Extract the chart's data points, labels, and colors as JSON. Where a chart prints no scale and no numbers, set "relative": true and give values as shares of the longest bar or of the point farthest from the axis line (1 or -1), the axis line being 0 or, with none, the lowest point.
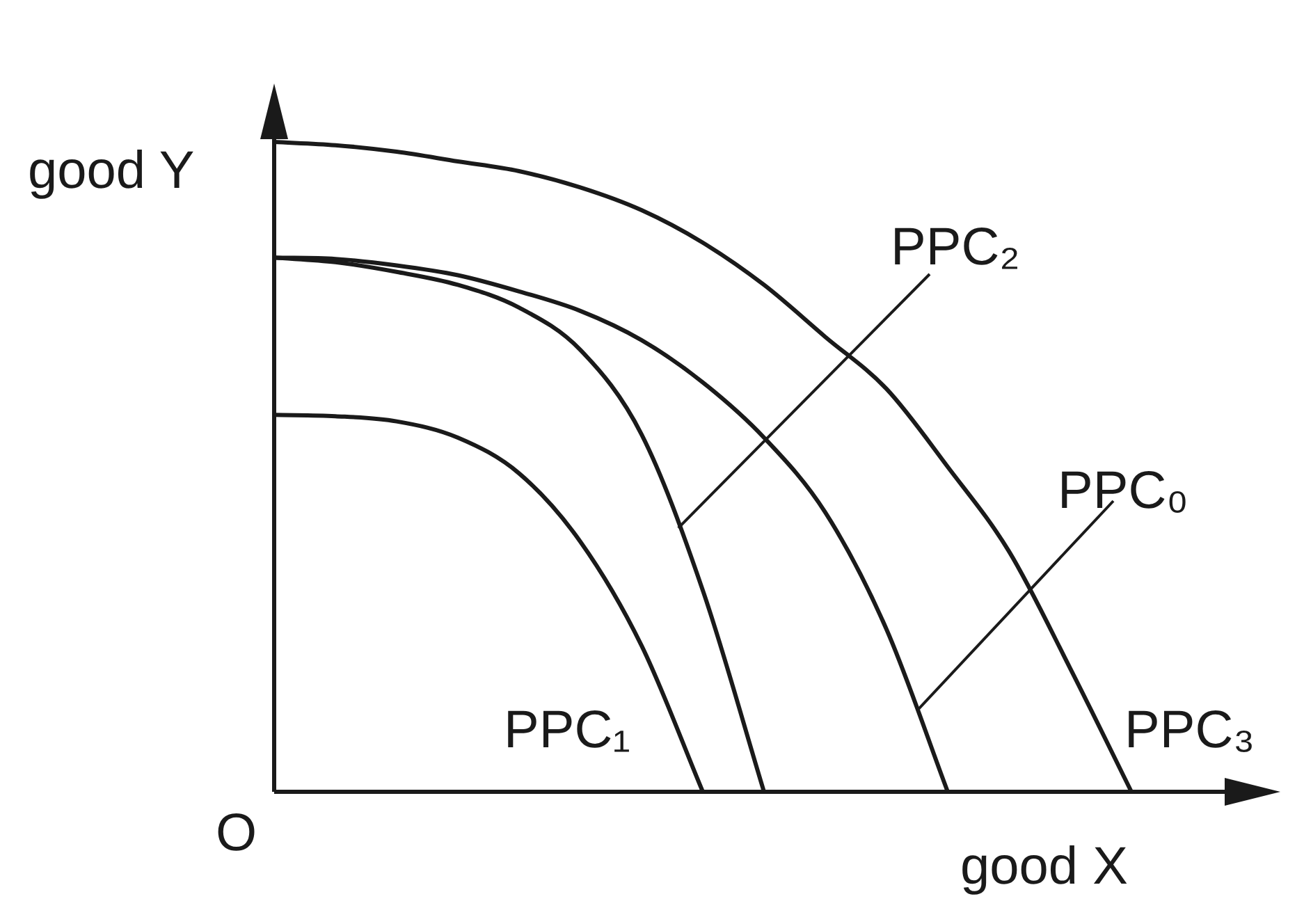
{
  "chart_data": {
    "type": "line",
    "relative": true,
    "xlabel": "good X",
    "ylabel": "good Y",
    "annotations": [
      "O"
    ],
    "categories": [
      null,
      null,
      null,
      null,
      null,
      null,
      null,
      null,
      null,
      null,
      null,
      null,
      null,
      null,
      null,
      null,
      null
    ],
    "legend": false,
    "marker": "none",
    "line_style": "solid",
    "tick_labels": false,
    "series": [
      {
        "name": "PPC₁",
        "color": "#1a1a1a",
        "values": [
          0.58,
          0.578,
          0.57,
          0.545,
          0.49,
          0.385,
          0.225,
          0,
          null,
          null,
          null,
          null,
          null,
          null,
          null,
          null,
          null
        ]
      },
      {
        "name": "PPC₂",
        "color": "#1a1a1a",
        "values": [
          0.822,
          0.815,
          0.8,
          0.78,
          0.745,
          0.68,
          0.55,
          0.31,
          0,
          null,
          null,
          null,
          null,
          null,
          null,
          null,
          null
        ]
      },
      {
        "name": "PPC₀",
        "color": "#1a1a1a",
        "values": [
          0.822,
          0.82,
          0.81,
          0.795,
          0.77,
          0.74,
          0.695,
          0.63,
          0.545,
          0.43,
          0.25,
          0,
          null,
          null,
          null,
          null,
          null
        ]
      },
      {
        "name": "PPC₃",
        "color": "#1a1a1a",
        "values": [
          1,
          0.995,
          0.985,
          0.97,
          0.955,
          0.93,
          0.895,
          0.845,
          0.78,
          0.7,
          0.62,
          0.5,
          0.37,
          0.19,
          0,
          null,
          null
        ]
      }
    ]
  }
}
